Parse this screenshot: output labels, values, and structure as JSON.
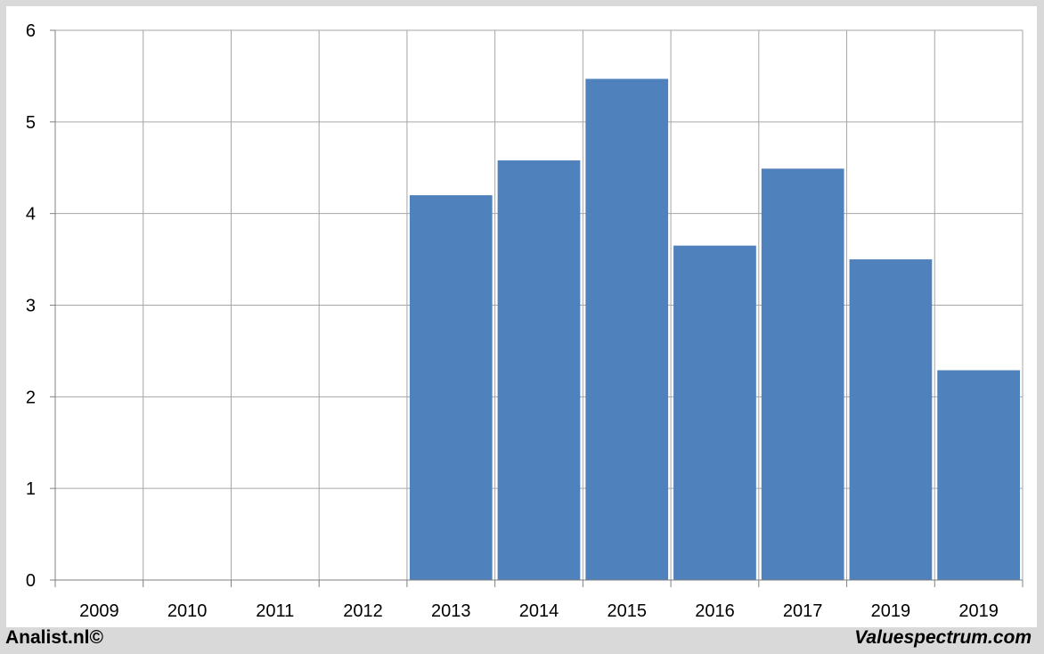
{
  "chart_data": {
    "type": "bar",
    "categories": [
      "2009",
      "2010",
      "2011",
      "2012",
      "2013",
      "2014",
      "2015",
      "2016",
      "2017",
      "2019",
      "2019"
    ],
    "values": [
      null,
      null,
      null,
      null,
      4.2,
      4.58,
      5.47,
      3.65,
      4.49,
      3.5,
      2.29
    ],
    "title": "",
    "xlabel": "",
    "ylabel": "",
    "ylim": [
      0,
      6
    ],
    "yticks": [
      0,
      1,
      2,
      3,
      4,
      5,
      6
    ],
    "grid": true,
    "bar_color": "#4f81bd",
    "grid_color": "#a6a6a6"
  },
  "footer": {
    "left": "Analist.nl©",
    "right": "Valuespectrum.com"
  }
}
